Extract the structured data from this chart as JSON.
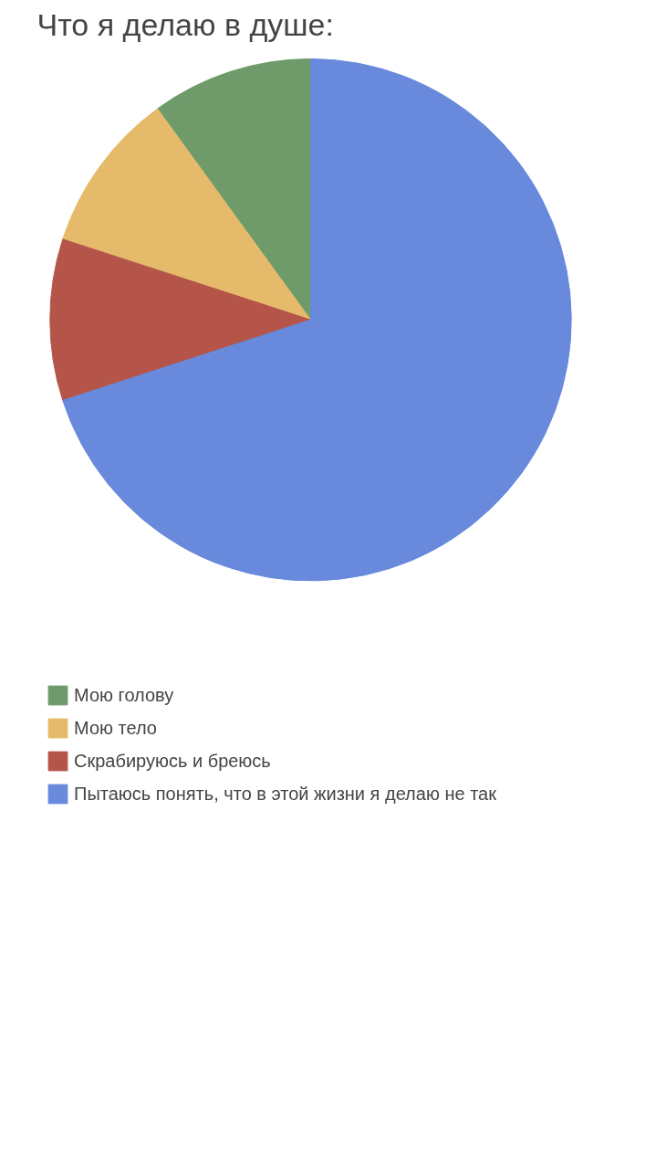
{
  "chart_data": {
    "type": "pie",
    "title": "Что я делаю в душе:",
    "categories": [
      "Мою голову",
      "Мою тело",
      "Скрабируюсь и бреюсь",
      "Пытаюсь понять, что в этой жизни я делаю не так"
    ],
    "values": [
      10,
      10,
      10,
      70
    ],
    "colors": [
      "#6f9a6a",
      "#e5bb6b",
      "#b5554a",
      "#6889dc"
    ],
    "legend": "bottom left"
  }
}
